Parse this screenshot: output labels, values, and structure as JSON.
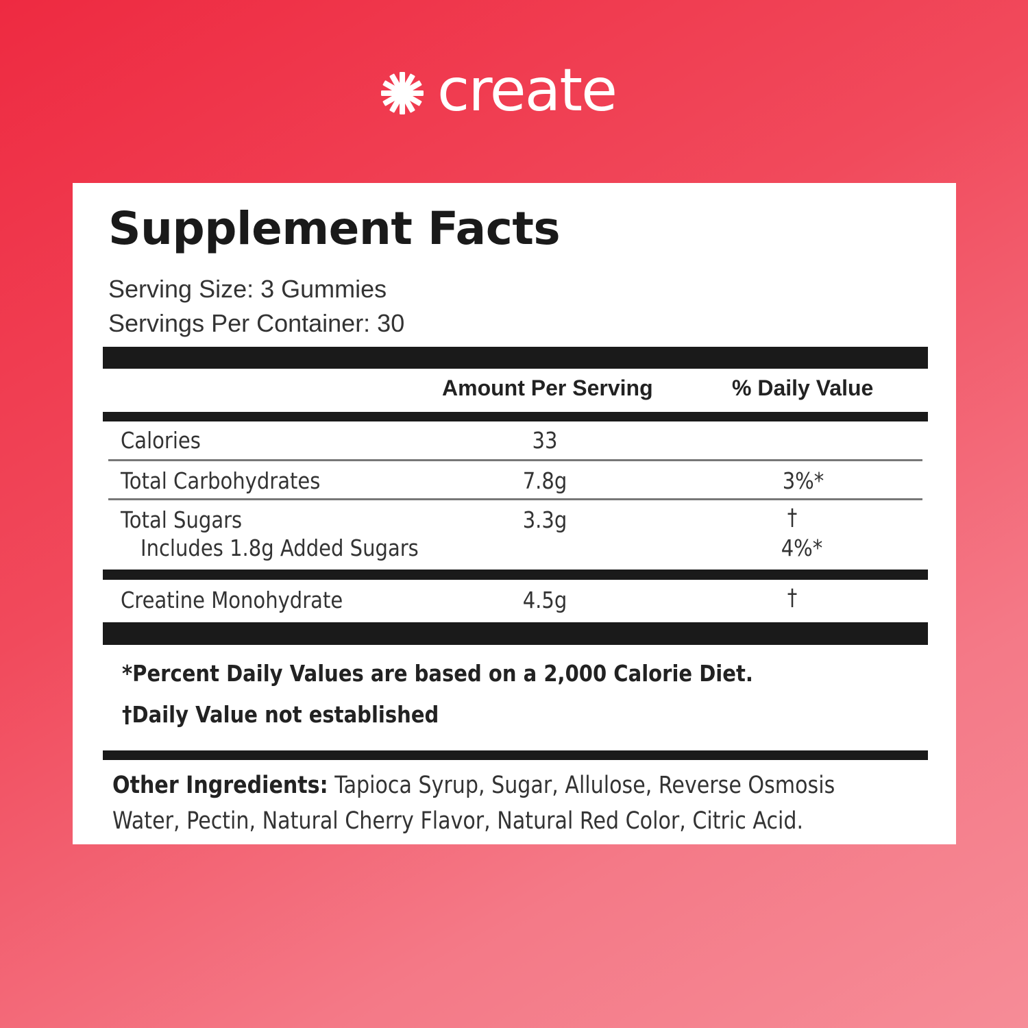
{
  "brand": {
    "name": "create",
    "icon": "asterisk-burst-icon"
  },
  "label": {
    "title": "Supplement Facts",
    "serving_size": "Serving Size: 3 Gummies",
    "servings_per_container": "Servings Per Container: 30",
    "header": {
      "amount": "Amount Per Serving",
      "dv": "% Daily Value"
    },
    "rows": [
      {
        "name": "Calories",
        "amount": "33",
        "dv": ""
      },
      {
        "name": "Total Carbohydrates",
        "amount": "7.8g",
        "dv": "3%*"
      },
      {
        "name": "Total Sugars",
        "amount": "3.3g",
        "dv": "†"
      },
      {
        "name": "Includes 1.8g Added Sugars",
        "amount": "",
        "dv": "4%*"
      },
      {
        "name": "Creatine Monohydrate",
        "amount": "4.5g",
        "dv": "†"
      }
    ],
    "footnotes": [
      "*Percent Daily Values are based on a 2,000 Calorie Diet.",
      "†Daily Value not established"
    ],
    "other_ingredients": {
      "label": "Other Ingredients:",
      "line1": " Tapioca Syrup, Sugar, Allulose, Reverse Osmosis",
      "line2": "Water, Pectin, Natural Cherry Flavor, Natural Red Color, Citric Acid."
    }
  },
  "colors": {
    "background_start": "#ee2a41",
    "background_end": "#f68c97",
    "panel": "#ffffff",
    "bars": "#1a1a1a"
  }
}
